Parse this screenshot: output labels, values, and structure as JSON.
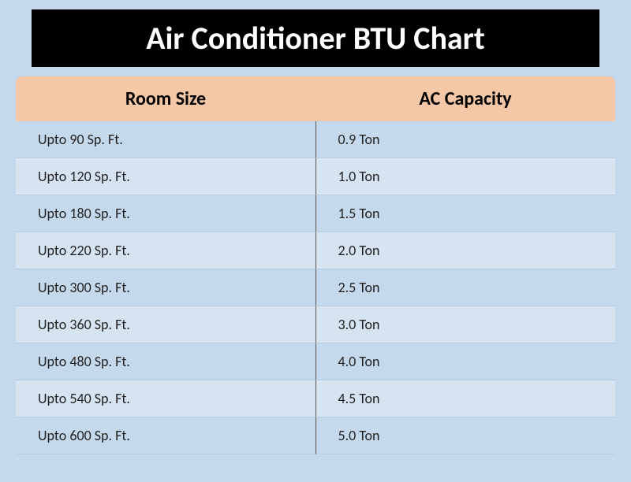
{
  "title": "Air Conditioner BTU Chart",
  "table": {
    "type": "table",
    "columns": [
      "Room Size",
      "AC Capacity"
    ],
    "rows": [
      [
        "Upto 90 Sp. Ft.",
        "0.9 Ton"
      ],
      [
        "Upto 120 Sp. Ft.",
        "1.0 Ton"
      ],
      [
        "Upto 180 Sp. Ft.",
        "1.5 Ton"
      ],
      [
        "Upto 220 Sp. Ft.",
        "2.0 Ton"
      ],
      [
        "Upto 300 Sp. Ft.",
        "2.5 Ton"
      ],
      [
        "Upto 360 Sp. Ft.",
        "3.0 Ton"
      ],
      [
        "Upto 480 Sp. Ft.",
        "4.0 Ton"
      ],
      [
        "Upto 540 Sp. Ft.",
        "4.5 Ton"
      ],
      [
        "Upto 600 Sp. Ft.",
        "5.0 Ton"
      ]
    ],
    "styling": {
      "title_background": "#000000",
      "title_color": "#ffffff",
      "title_fontsize": 40,
      "title_fontweight": "bold",
      "header_background": "#f4c7a6",
      "header_color": "#000000",
      "header_fontsize": 24,
      "header_fontweight": "bold",
      "row_odd_background": "#c5d9ec",
      "row_even_background": "#d6e4f2",
      "cell_fontsize": 18,
      "cell_color": "#222222",
      "page_background": "#c5d9ec",
      "row_border_color": "#b8cde0",
      "column_divider_color": "#555555",
      "header_border_radius": 8
    }
  }
}
